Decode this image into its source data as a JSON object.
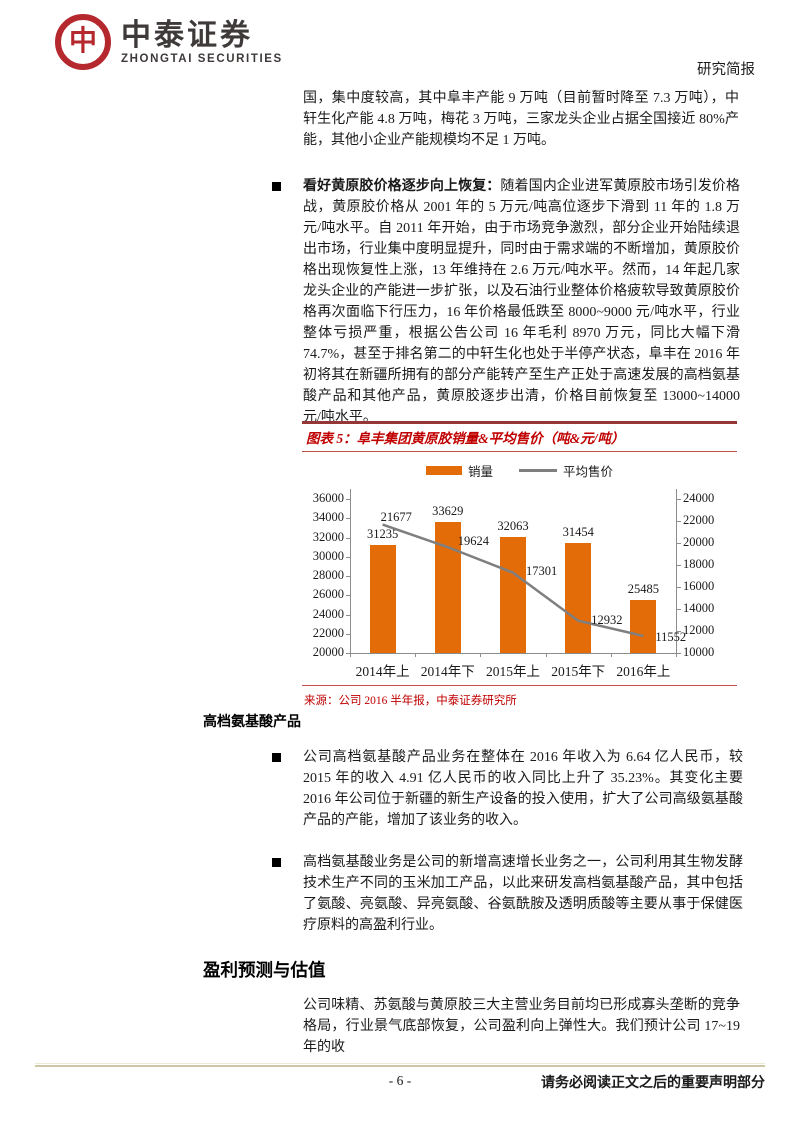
{
  "header": {
    "brand_cn": "中泰证券",
    "brand_en": "ZHONGTAI SECURITIES",
    "emblem_glyph": "中",
    "report_type": "研究简报"
  },
  "body": {
    "para_continued": "国，集中度较高，其中阜丰产能 9 万吨（目前暂时降至 7.3 万吨），中轩生化产能 4.8 万吨，梅花 3 万吨，三家龙头企业占据全国接近 80%产能，其他小企业产能规模均不足 1 万吨。",
    "bullet_xanthan_lead": "看好黄原胶价格逐步向上恢复：",
    "bullet_xanthan_text": "随着国内企业进军黄原胶市场引发价格战，黄原胶价格从 2001 年的 5 万元/吨高位逐步下滑到 11 年的 1.8 万元/吨水平。自 2011 年开始，由于市场竞争激烈，部分企业开始陆续退出市场，行业集中度明显提升，同时由于需求端的不断增加，黄原胶价格出现恢复性上涨，13 年维持在 2.6 万元/吨水平。然而，14 年起几家龙头企业的产能进一步扩张，以及石油行业整体价格疲软导致黄原胶价格再次面临下行压力，16 年价格最低跌至 8000~9000 元/吨水平，行业整体亏损严重，根据公告公司 16 年毛利 8970 万元，同比大幅下滑 74.7%，甚至于排名第二的中轩生化也处于半停产状态，阜丰在 2016 年初将其在新疆所拥有的部分产能转产至生产正处于高速发展的高档氨基酸产品和其他产品，黄原胶逐步出清，价格目前恢复至 13000~14000 元/吨水平。"
  },
  "figure": {
    "title": "图表 5：阜丰集团黄原胶销量&平均售价（吨&元/吨）",
    "source": "来源：公司 2016 半年报，中泰证券研究所"
  },
  "chart_data": {
    "type": "bar",
    "title": "阜丰集团黄原胶销量&平均售价（吨&元/吨）",
    "categories": [
      "2014年上",
      "2014年下",
      "2015年上",
      "2015年下",
      "2016年上"
    ],
    "series": [
      {
        "name": "销量",
        "type": "bar",
        "axis": "left",
        "color": "#e36c09",
        "values": [
          31235,
          33629,
          32063,
          31454,
          25485
        ]
      },
      {
        "name": "平均售价",
        "type": "line",
        "axis": "right",
        "color": "#7f7f7f",
        "values": [
          21677,
          19624,
          17301,
          12932,
          11552
        ]
      }
    ],
    "left_axis": {
      "min": 20000,
      "max": 36000,
      "step": 2000
    },
    "right_axis": {
      "min": 10000,
      "max": 24000,
      "step": 2000
    },
    "legend_position": "top",
    "grid": false
  },
  "amino_section": {
    "heading": "高档氨基酸产品",
    "bullet1": "公司高档氨基酸产品业务在整体在 2016 年收入为 6.64 亿人民币，较 2015 年的收入 4.91 亿人民币的收入同比上升了 35.23%。其变化主要 2016 年公司位于新疆的新生产设备的投入使用，扩大了公司高级氨基酸产品的产能，增加了该业务的收入。",
    "bullet2": "高档氨基酸业务是公司的新增高速增长业务之一，公司利用其生物发酵技术生产不同的玉米加工产品，以此来研发高档氨基酸产品，其中包括了氨酸、亮氨酸、异亮氨酸、谷氨酰胺及透明质酸等主要从事于保健医疗原料的高盈利行业。"
  },
  "forecast_section": {
    "heading": "盈利预测与估值",
    "paragraph": "公司味精、苏氨酸与黄原胶三大主营业务目前均已形成寡头垄断的竞争格局，行业景气底部恢复，公司盈利向上弹性大。我们预计公司 17~19 年的收"
  },
  "footer": {
    "page_number": "- 6 -",
    "disclaimer": "请务必阅读正文之后的重要声明部分"
  }
}
